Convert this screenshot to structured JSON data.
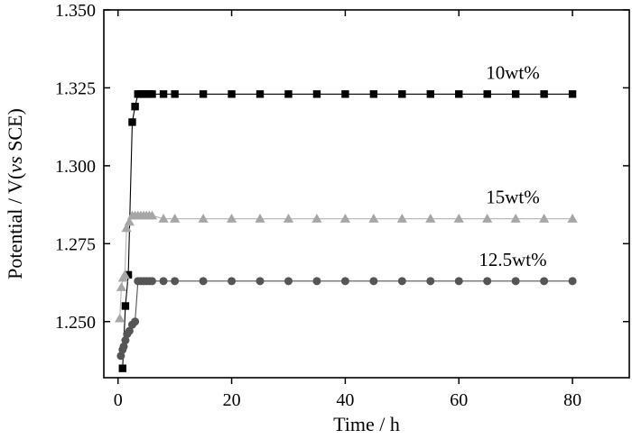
{
  "chart_data": {
    "type": "scatter",
    "title": "",
    "xlabel": "Time / h",
    "ylabel_parts": [
      "Potential / V(",
      "vs",
      " SCE)"
    ],
    "xlim": [
      -2.5,
      90
    ],
    "ylim": [
      1.232,
      1.35
    ],
    "x_ticks": [
      0,
      20,
      40,
      60,
      80
    ],
    "x_tick_labels": [
      "0",
      "20",
      "40",
      "60",
      "80"
    ],
    "y_ticks": [
      1.25,
      1.275,
      1.3,
      1.325,
      1.35
    ],
    "y_tick_labels": [
      "1.250",
      "1.275",
      "1.300",
      "1.325",
      "1.350"
    ],
    "grid": false,
    "legend": "none",
    "series": [
      {
        "name": "10wt%",
        "marker": "square",
        "color": "#000000",
        "line_color": "#000000",
        "x": [
          0.8,
          1.3,
          1.8,
          2.5,
          3,
          3.5,
          4,
          4.5,
          5,
          5.5,
          6,
          8,
          10,
          15,
          20,
          25,
          30,
          35,
          40,
          45,
          50,
          55,
          60,
          65,
          70,
          75,
          80
        ],
        "y": [
          1.235,
          1.255,
          1.265,
          1.314,
          1.319,
          1.323,
          1.323,
          1.323,
          1.323,
          1.323,
          1.323,
          1.323,
          1.323,
          1.323,
          1.323,
          1.323,
          1.323,
          1.323,
          1.323,
          1.323,
          1.323,
          1.323,
          1.323,
          1.323,
          1.323,
          1.323,
          1.323
        ]
      },
      {
        "name": "15wt%",
        "marker": "triangle",
        "color": "#a6a6a6",
        "line_color": "#b3b3b3",
        "x": [
          0.3,
          0.6,
          0.9,
          1.2,
          1.5,
          2,
          2.5,
          3,
          3.5,
          4,
          4.5,
          5,
          5.5,
          6,
          8,
          10,
          15,
          20,
          25,
          30,
          35,
          40,
          45,
          50,
          55,
          60,
          65,
          70,
          75,
          80
        ],
        "y": [
          1.251,
          1.261,
          1.264,
          1.265,
          1.28,
          1.282,
          1.284,
          1.284,
          1.284,
          1.284,
          1.284,
          1.284,
          1.284,
          1.284,
          1.283,
          1.283,
          1.283,
          1.283,
          1.283,
          1.283,
          1.283,
          1.283,
          1.283,
          1.283,
          1.283,
          1.283,
          1.283,
          1.283,
          1.283,
          1.283
        ]
      },
      {
        "name": "12.5wt%",
        "marker": "circle",
        "color": "#555555",
        "line_color": "#555555",
        "x": [
          0.5,
          0.8,
          1,
          1.3,
          1.6,
          2,
          2.5,
          3,
          3.5,
          4,
          4.5,
          5,
          5.5,
          6,
          8,
          10,
          15,
          20,
          25,
          30,
          35,
          40,
          45,
          50,
          55,
          60,
          65,
          70,
          75,
          80
        ],
        "y": [
          1.239,
          1.241,
          1.242,
          1.244,
          1.246,
          1.247,
          1.249,
          1.25,
          1.263,
          1.263,
          1.263,
          1.263,
          1.263,
          1.263,
          1.263,
          1.263,
          1.263,
          1.263,
          1.263,
          1.263,
          1.263,
          1.263,
          1.263,
          1.263,
          1.263,
          1.263,
          1.263,
          1.263,
          1.263,
          1.263
        ]
      }
    ]
  }
}
